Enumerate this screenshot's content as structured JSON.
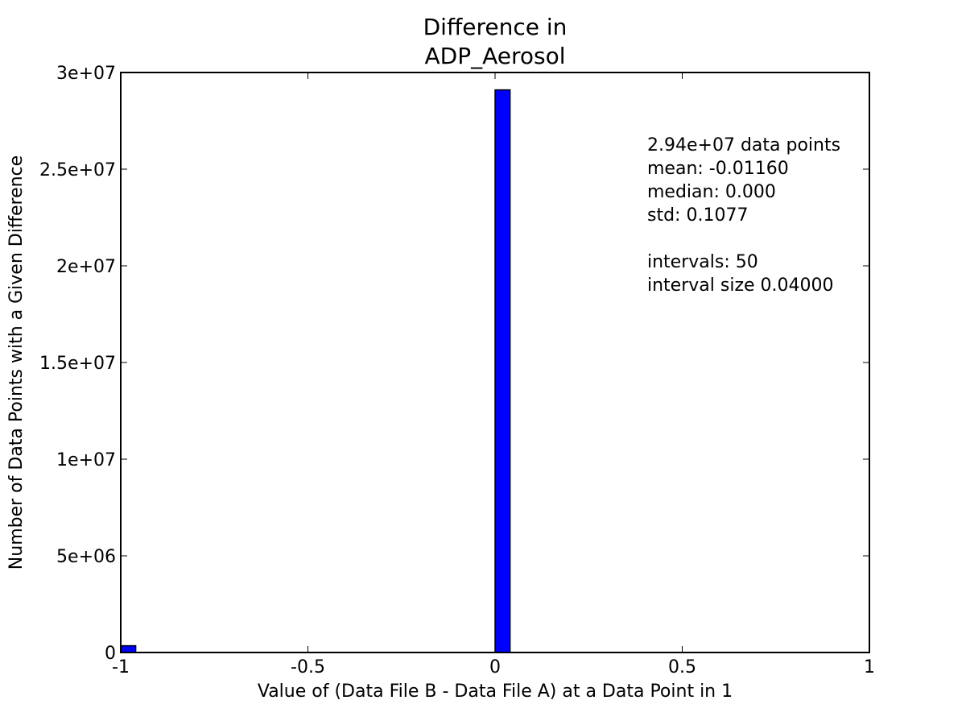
{
  "chart_data": {
    "type": "bar",
    "title": [
      "Difference in",
      "ADP_Aerosol"
    ],
    "xlabel": "Value of (Data File B - Data File A) at a Data Point in 1",
    "ylabel": "Number of Data Points with a Given Difference",
    "xlim": [
      -1,
      1
    ],
    "ylim": [
      0,
      30000000
    ],
    "x_ticks": [
      {
        "value": -1,
        "label": "-1"
      },
      {
        "value": -0.5,
        "label": "-0.5"
      },
      {
        "value": 0,
        "label": "0"
      },
      {
        "value": 0.5,
        "label": "0.5"
      },
      {
        "value": 1,
        "label": "1"
      }
    ],
    "y_ticks": [
      {
        "value": 0,
        "label": "0"
      },
      {
        "value": 5000000,
        "label": "5e+06"
      },
      {
        "value": 10000000,
        "label": "1e+07"
      },
      {
        "value": 15000000,
        "label": "1.5e+07"
      },
      {
        "value": 20000000,
        "label": "2e+07"
      },
      {
        "value": 25000000,
        "label": "2.5e+07"
      },
      {
        "value": 30000000,
        "label": "3e+07"
      }
    ],
    "bars": [
      {
        "x0": -1.0,
        "x1": -0.96,
        "value": 350000
      },
      {
        "x0": 0.0,
        "x1": 0.04,
        "value": 29100000
      }
    ],
    "bar_color": "#0000ff",
    "grid": false,
    "annotation_lines": [
      "2.94e+07 data points",
      "mean: -0.01160",
      "median: 0.000",
      "std: 0.1077",
      "",
      "intervals: 50",
      "interval size 0.04000"
    ]
  }
}
